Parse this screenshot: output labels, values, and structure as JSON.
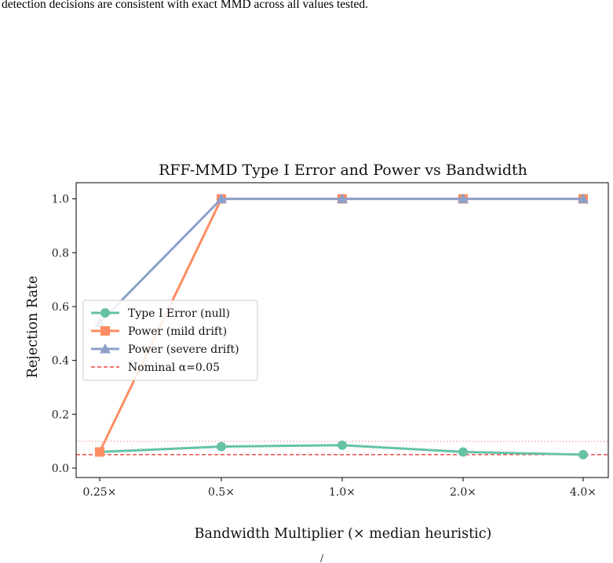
{
  "caption": "detection decisions are consistent with exact MMD across all values tested.",
  "footer_mark": "/",
  "chart_data": {
    "type": "line",
    "title": "RFF-MMD Type I Error and Power vs Bandwidth",
    "xlabel": "Bandwidth Multiplier (× median heuristic)",
    "ylabel": "Rejection Rate",
    "categories": [
      "0.25×",
      "0.5×",
      "1.0×",
      "2.0×",
      "4.0×"
    ],
    "ylim": [
      -0.035,
      1.06
    ],
    "yticks": [
      "0.0",
      "0.2",
      "0.4",
      "0.6",
      "0.8",
      "1.0"
    ],
    "grid": false,
    "legend_position": "center-left",
    "series": [
      {
        "name": "Type I Error (null)",
        "values": [
          0.06,
          0.08,
          0.085,
          0.06,
          0.05
        ],
        "color": "#66c2a5",
        "marker": "circle"
      },
      {
        "name": "Power (mild drift)",
        "values": [
          0.06,
          1.0,
          1.0,
          1.0,
          1.0
        ],
        "color": "#fc8d62",
        "marker": "square"
      },
      {
        "name": "Power (severe drift)",
        "values": [
          0.54,
          1.0,
          1.0,
          1.0,
          1.0
        ],
        "color": "#8da0cb",
        "marker": "triangle"
      }
    ],
    "reference_lines": [
      {
        "name": "Nominal α=0.05",
        "value": 0.05,
        "color": "#e8413c",
        "style": "dashed",
        "in_legend": true
      },
      {
        "value": 0.1,
        "color": "#f4aaaa",
        "style": "dotted",
        "in_legend": false
      }
    ]
  }
}
